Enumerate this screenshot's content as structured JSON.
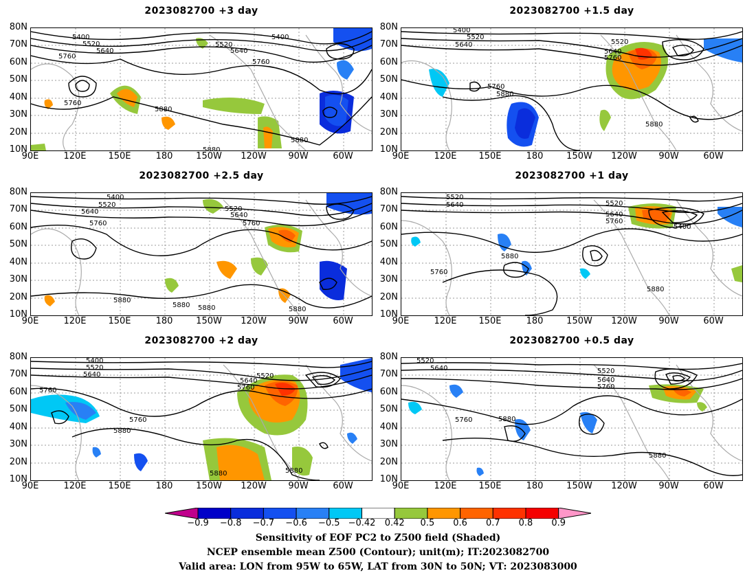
{
  "lat_labels": [
    "10N",
    "20N",
    "30N",
    "40N",
    "50N",
    "60N",
    "70N",
    "80N"
  ],
  "lon_labels": [
    "90E",
    "120E",
    "150E",
    "180",
    "150W",
    "120W",
    "90W",
    "60W"
  ],
  "panels": [
    {
      "title": "2023082700 +3 day",
      "contours": [
        {
          "text": "5400"
        },
        {
          "text": "5520"
        },
        {
          "text": "5640"
        },
        {
          "text": "5400"
        },
        {
          "text": "5520"
        },
        {
          "text": "5640"
        },
        {
          "text": "5760"
        },
        {
          "text": "5760"
        },
        {
          "text": "5760"
        },
        {
          "text": "5880"
        },
        {
          "text": "5880"
        },
        {
          "text": "5880"
        }
      ]
    },
    {
      "title": "2023082700 +1.5 day",
      "contours": [
        {
          "text": "5400"
        },
        {
          "text": "5520"
        },
        {
          "text": "5640"
        },
        {
          "text": "5520"
        },
        {
          "text": "5640"
        },
        {
          "text": "5760"
        },
        {
          "text": "5760"
        },
        {
          "text": "5880"
        },
        {
          "text": "5880"
        }
      ]
    },
    {
      "title": "2023082700 +2.5 day",
      "contours": [
        {
          "text": "5400"
        },
        {
          "text": "5520"
        },
        {
          "text": "5640"
        },
        {
          "text": "5760"
        },
        {
          "text": "5520"
        },
        {
          "text": "5640"
        },
        {
          "text": "5760"
        },
        {
          "text": "5880"
        },
        {
          "text": "5880"
        },
        {
          "text": "5880"
        },
        {
          "text": "5880"
        }
      ]
    },
    {
      "title": "2023082700 +1 day",
      "contours": [
        {
          "text": "5520"
        },
        {
          "text": "5640"
        },
        {
          "text": "5520"
        },
        {
          "text": "5640"
        },
        {
          "text": "5760"
        },
        {
          "text": "5400"
        },
        {
          "text": "5880"
        },
        {
          "text": "5760"
        },
        {
          "text": "5880"
        }
      ]
    },
    {
      "title": "2023082700 +2 day",
      "contours": [
        {
          "text": "5400"
        },
        {
          "text": "5520"
        },
        {
          "text": "5640"
        },
        {
          "text": "5760"
        },
        {
          "text": "5520"
        },
        {
          "text": "5640"
        },
        {
          "text": "5760"
        },
        {
          "text": "5760"
        },
        {
          "text": "5880"
        },
        {
          "text": "5880"
        },
        {
          "text": "5880"
        }
      ]
    },
    {
      "title": "2023082700 +0.5 day",
      "contours": [
        {
          "text": "5520"
        },
        {
          "text": "5640"
        },
        {
          "text": "5520"
        },
        {
          "text": "5640"
        },
        {
          "text": "5760"
        },
        {
          "text": "5760"
        },
        {
          "text": "5880"
        },
        {
          "text": "5880"
        }
      ]
    }
  ],
  "colorbar": {
    "ticks": [
      "−0.9",
      "−0.8",
      "−0.7",
      "−0.6",
      "−0.5",
      "−0.42",
      "0.42",
      "0.5",
      "0.6",
      "0.7",
      "0.8",
      "0.9"
    ],
    "colors": [
      "#c0008c",
      "#0000c8",
      "#0a2ddc",
      "#1450f0",
      "#2880f5",
      "#00c8f5",
      "#ffffff",
      "#96c83c",
      "#ff9600",
      "#ff6400",
      "#ff3200",
      "#f50000",
      "#ff96c8"
    ]
  },
  "captions": [
    "Sensitivity of EOF PC2 to Z500 field (Shaded)",
    "NCEP ensemble mean Z500 (Contour); unit(m); IT:2023082700",
    "Valid area: LON from 95W to 65W, LAT from 30N to 50N; VT: 2023083000"
  ]
}
